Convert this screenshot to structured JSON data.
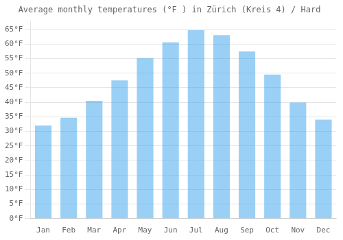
{
  "chart_data": {
    "type": "bar",
    "title": "Average monthly temperatures (°F ) in Zürich (Kreis 4) / Hard",
    "categories": [
      "Jan",
      "Feb",
      "Mar",
      "Apr",
      "May",
      "Jun",
      "Jul",
      "Aug",
      "Sep",
      "Oct",
      "Nov",
      "Dec"
    ],
    "values": [
      32.0,
      34.7,
      40.5,
      47.5,
      55.2,
      60.6,
      64.8,
      63.1,
      57.5,
      49.5,
      39.9,
      34.0
    ],
    "ylim": [
      0,
      68
    ],
    "yticks": [
      {
        "value": 0,
        "label": "0°F"
      },
      {
        "value": 5,
        "label": "5°F"
      },
      {
        "value": 10,
        "label": "10°F"
      },
      {
        "value": 15,
        "label": "15°F"
      },
      {
        "value": 20,
        "label": "20°F"
      },
      {
        "value": 25,
        "label": "25°F"
      },
      {
        "value": 30,
        "label": "30°F"
      },
      {
        "value": 35,
        "label": "35°F"
      },
      {
        "value": 40,
        "label": "40°F"
      },
      {
        "value": 45,
        "label": "45°F"
      },
      {
        "value": 50,
        "label": "50°F"
      },
      {
        "value": 55,
        "label": "55°F"
      },
      {
        "value": 60,
        "label": "60°F"
      },
      {
        "value": 65,
        "label": "65°F"
      }
    ],
    "grid": true
  }
}
